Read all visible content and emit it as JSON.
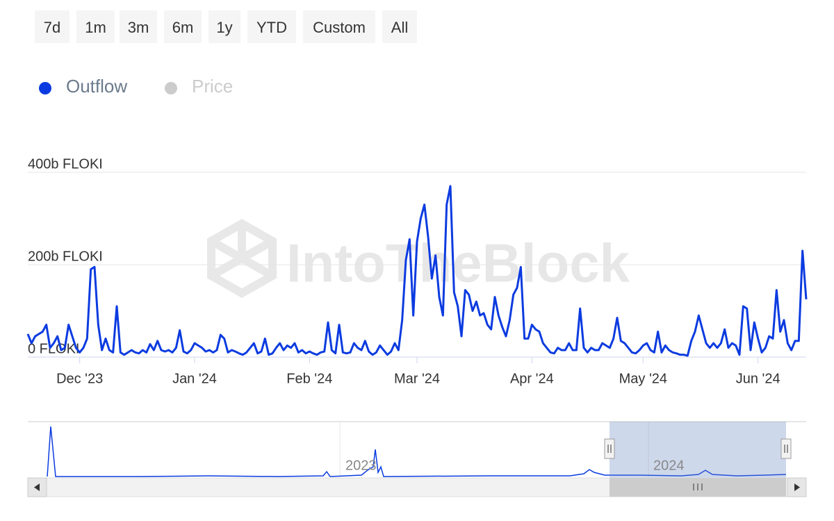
{
  "range_buttons": [
    "7d",
    "1m",
    "3m",
    "6m",
    "1y",
    "YTD",
    "Custom",
    "All"
  ],
  "watermark": "IntoTheBlock",
  "navigator": {
    "labels": [
      "2023",
      "2024"
    ]
  },
  "chart_data": {
    "type": "line",
    "legend_position": "top-left",
    "grid": true,
    "series": [
      {
        "name": "Outflow",
        "color": "#0b3be0",
        "values": [
          50,
          30,
          45,
          50,
          55,
          70,
          20,
          30,
          45,
          15,
          20,
          70,
          45,
          20,
          10,
          20,
          40,
          190,
          195,
          70,
          15,
          40,
          15,
          10,
          110,
          10,
          5,
          10,
          15,
          10,
          8,
          15,
          10,
          28,
          15,
          35,
          15,
          12,
          15,
          10,
          20,
          58,
          12,
          8,
          15,
          30,
          25,
          20,
          12,
          15,
          10,
          15,
          48,
          40,
          10,
          15,
          12,
          8,
          5,
          10,
          20,
          30,
          8,
          12,
          40,
          5,
          8,
          20,
          30,
          15,
          25,
          20,
          30,
          10,
          15,
          8,
          12,
          8,
          5,
          10,
          12,
          75,
          15,
          8,
          70,
          10,
          8,
          10,
          30,
          20,
          15,
          35,
          12,
          5,
          10,
          25,
          15,
          5,
          12,
          30,
          15,
          80,
          210,
          255,
          90,
          250,
          300,
          330,
          260,
          170,
          220,
          130,
          90,
          330,
          370,
          140,
          110,
          45,
          145,
          135,
          100,
          120,
          90,
          95,
          70,
          60,
          130,
          90,
          65,
          45,
          80,
          135,
          150,
          195,
          40,
          40,
          70,
          60,
          55,
          30,
          20,
          10,
          8,
          20,
          15,
          15,
          30,
          15,
          15,
          105,
          20,
          10,
          20,
          15,
          15,
          30,
          25,
          20,
          40,
          85,
          35,
          30,
          20,
          10,
          8,
          15,
          25,
          30,
          15,
          10,
          55,
          10,
          25,
          15,
          10,
          8,
          5,
          5,
          3,
          35,
          55,
          90,
          60,
          30,
          20,
          30,
          20,
          30,
          60,
          20,
          30,
          25,
          5,
          110,
          105,
          15,
          75,
          40,
          10,
          20,
          45,
          40,
          145,
          55,
          80,
          30,
          15,
          35,
          35,
          230,
          125
        ]
      },
      {
        "name": "Price",
        "color": "#cccccc",
        "hidden": true
      }
    ],
    "xlim": [
      0,
      210
    ],
    "xticks": [
      {
        "value": 14,
        "label": "Dec '23"
      },
      {
        "value": 45,
        "label": "Jan '24"
      },
      {
        "value": 76,
        "label": "Feb '24"
      },
      {
        "value": 105,
        "label": "Mar '24"
      },
      {
        "value": 136,
        "label": "Apr '24"
      },
      {
        "value": 166,
        "label": "May '24"
      },
      {
        "value": 197,
        "label": "Jun '24"
      }
    ],
    "ylim": [
      0,
      400
    ],
    "yticks": [
      {
        "value": 0,
        "label": "0 FLOKI"
      },
      {
        "value": 200,
        "label": "200b FLOKI"
      },
      {
        "value": 400,
        "label": "400b FLOKI"
      }
    ]
  }
}
